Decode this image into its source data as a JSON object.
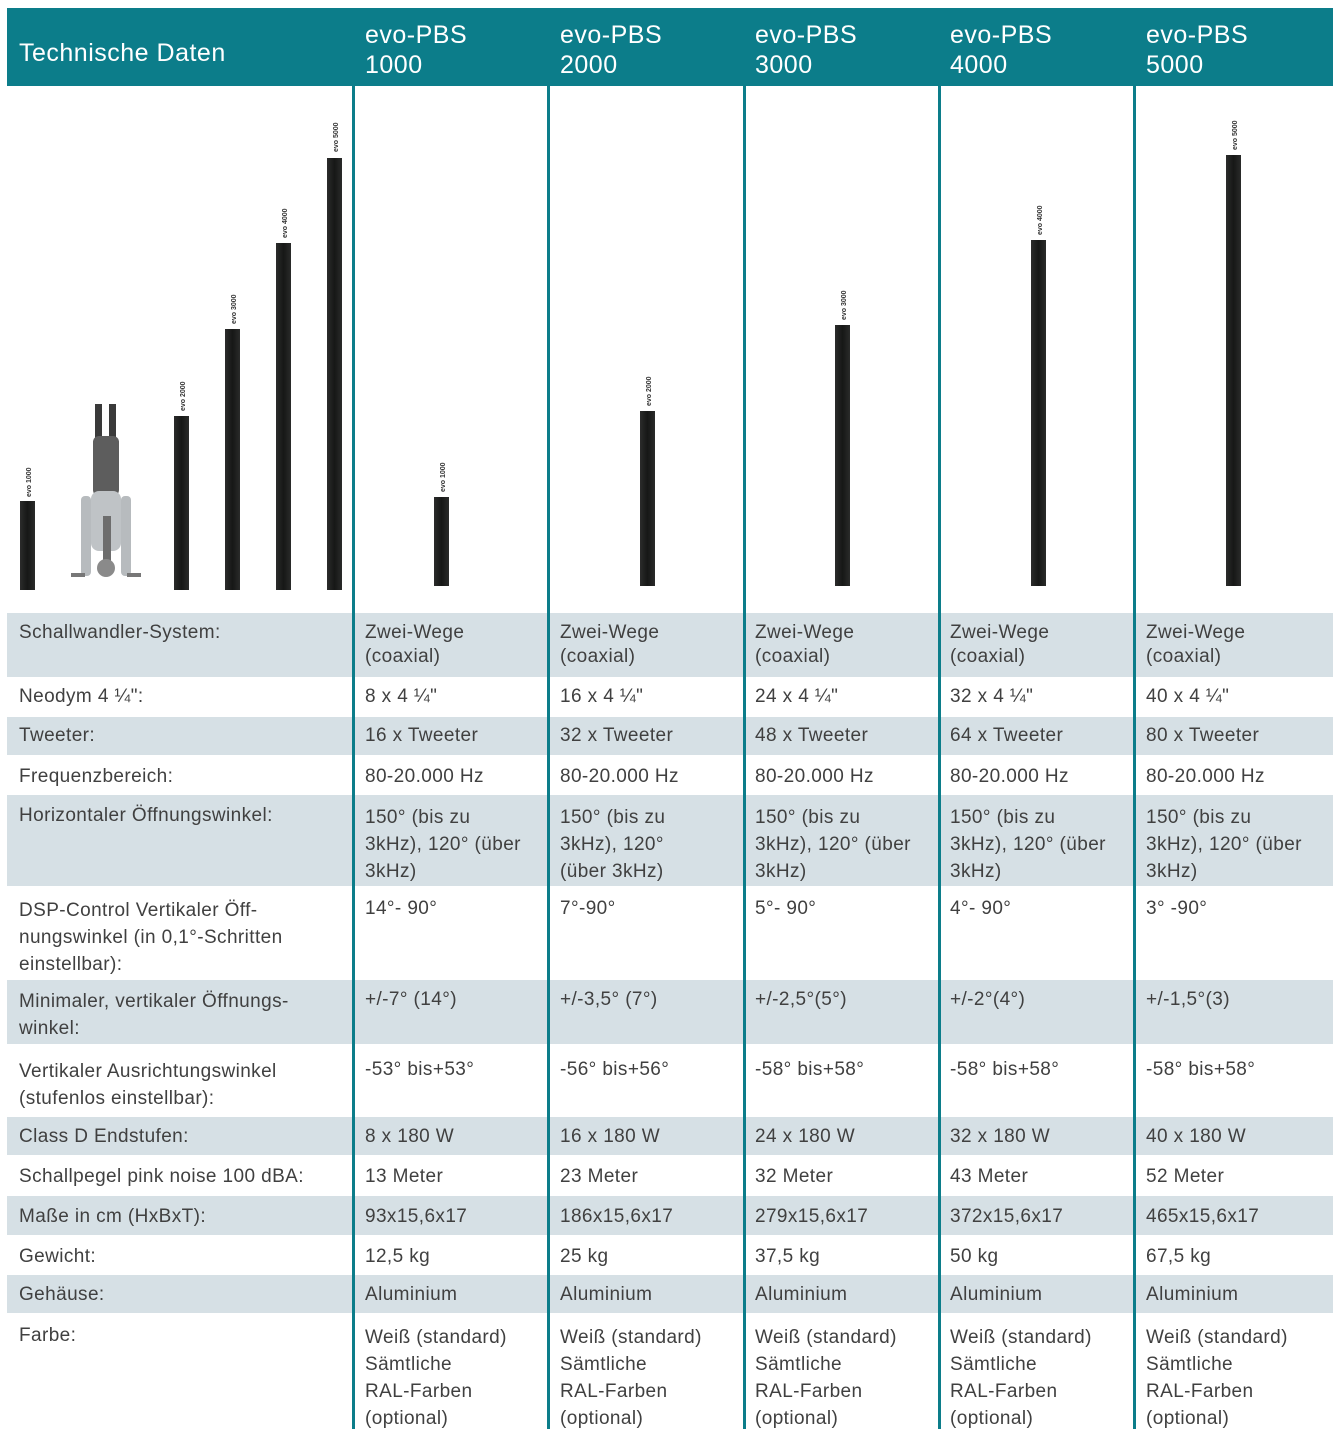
{
  "header": {
    "title": "Technische Daten",
    "models": [
      {
        "line1": "evo-PBS",
        "line2": "1000"
      },
      {
        "line1": "evo-PBS",
        "line2": "2000"
      },
      {
        "line1": "evo-PBS",
        "line2": "3000"
      },
      {
        "line1": "evo-PBS",
        "line2": "4000"
      },
      {
        "line1": "evo-PBS",
        "line2": "5000"
      }
    ]
  },
  "image": {
    "comparison_labels": [
      "evo 1000",
      "evo 2000",
      "evo 3000",
      "evo 4000",
      "evo 5000"
    ],
    "column_labels": [
      "evo 1000",
      "evo 2000",
      "evo 3000",
      "evo 4000",
      "evo 5000"
    ]
  },
  "rows": [
    {
      "label": "Schallwandler-System:",
      "values": [
        "Zwei-Wege\n(coaxial)",
        "Zwei-Wege\n(coaxial)",
        "Zwei-Wege\n(coaxial)",
        "Zwei-Wege\n(coaxial)",
        "Zwei-Wege\n(coaxial)"
      ]
    },
    {
      "label": "Neodym 4 ¼\":",
      "values": [
        "8 x 4 ¼\"",
        "16 x 4 ¼\"",
        "24 x 4 ¼\"",
        "32 x 4 ¼\"",
        "40 x 4 ¼\""
      ]
    },
    {
      "label": "Tweeter:",
      "values": [
        "16 x Tweeter",
        "32 x Tweeter",
        "48 x Tweeter",
        "64 x Tweeter",
        "80 x Tweeter"
      ]
    },
    {
      "label": "Frequenzbereich:",
      "values": [
        "80-20.000 Hz",
        "80-20.000 Hz",
        "80-20.000 Hz",
        "80-20.000 Hz",
        "80-20.000 Hz"
      ]
    },
    {
      "label": "Horizontaler Öffnungswinkel:",
      "values": [
        "150° (bis zu\n3kHz), 120° (über\n3kHz)",
        "150° (bis zu\n3kHz), 120°\n(über 3kHz)",
        "150° (bis zu\n3kHz), 120° (über\n3kHz)",
        "150° (bis zu\n3kHz), 120° (über\n3kHz)",
        "150° (bis zu\n3kHz), 120° (über\n3kHz)"
      ]
    },
    {
      "label": "DSP-Control Vertikaler Öff-\nnungswinkel (in 0,1°-Schritten\neinstellbar):",
      "values": [
        "14°- 90°",
        "7°-90°",
        "5°- 90°",
        "4°- 90°",
        "3° -90°"
      ]
    },
    {
      "label": "Minimaler, vertikaler Öffnungs-\nwinkel:",
      "values": [
        "+/-7° (14°)",
        "+/-3,5° (7°)",
        "+/-2,5°(5°)",
        "+/-2°(4°)",
        "+/-1,5°(3)"
      ]
    },
    {
      "label": "Vertikaler Ausrichtungswinkel\n(stufenlos einstellbar):",
      "values": [
        "-53° bis+53°",
        "-56° bis+56°",
        "-58° bis+58°",
        "-58° bis+58°",
        "-58° bis+58°"
      ]
    },
    {
      "label": "Class D Endstufen:",
      "values": [
        "8 x 180 W",
        "16 x 180 W",
        "24 x 180 W",
        "32 x 180 W",
        "40 x 180 W"
      ]
    },
    {
      "label": "Schallpegel pink noise 100 dBA:",
      "values": [
        "13 Meter",
        "23 Meter",
        "32 Meter",
        "43 Meter",
        "52 Meter"
      ]
    },
    {
      "label": "Maße in cm (HxBxT):",
      "values": [
        "93x15,6x17",
        "186x15,6x17",
        "279x15,6x17",
        "372x15,6x17",
        "465x15,6x17"
      ]
    },
    {
      "label": "Gewicht:",
      "values": [
        "12,5 kg",
        "25 kg",
        "37,5 kg",
        "50 kg",
        "67,5 kg"
      ]
    },
    {
      "label": "Gehäuse:",
      "values": [
        "Aluminium",
        "Aluminium",
        "Aluminium",
        "Aluminium",
        "Aluminium"
      ]
    },
    {
      "label": "Farbe:",
      "values": [
        "Weiß (standard)\nSämtliche\nRAL-Farben\n(optional)",
        "Weiß (standard)\nSämtliche\nRAL-Farben\n(optional)",
        "Weiß (standard)\nSämtliche\nRAL-Farben\n(optional)",
        "Weiß (standard)\nSämtliche\nRAL-Farben\n(optional)",
        "Weiß (standard)\nSämtliche\nRAL-Farben\n(optional)"
      ]
    }
  ],
  "colors": {
    "header": "#0c7d8a",
    "shade": "#d6e0e5",
    "speaker": "#1e1f1e"
  }
}
